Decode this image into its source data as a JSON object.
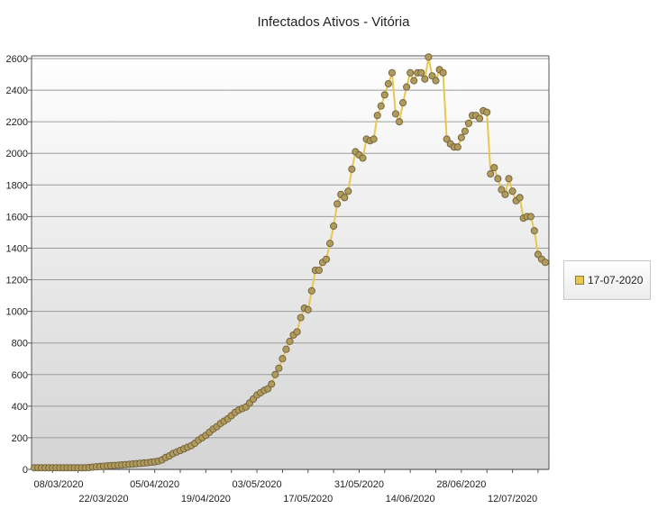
{
  "chart_data": {
    "type": "line",
    "title": "Infectados Ativos - Vitória",
    "xlabel": "",
    "ylabel": "",
    "ylim": [
      0,
      2600
    ],
    "yticks": [
      0,
      200,
      400,
      600,
      800,
      1000,
      1200,
      1400,
      1600,
      1800,
      2000,
      2200,
      2400,
      2600
    ],
    "xtick_labels": [
      "08/03/2020",
      "22/03/2020",
      "05/04/2020",
      "19/04/2020",
      "03/05/2020",
      "17/05/2020",
      "31/05/2020",
      "14/06/2020",
      "28/06/2020",
      "12/07/2020"
    ],
    "x_start": "03/03/2020",
    "x_end": "17/07/2020",
    "grid": true,
    "legend_position": "right",
    "series": [
      {
        "name": "17-07-2020",
        "color": "#e8c650",
        "marker_color": "#b09a5c",
        "values": [
          10,
          10,
          10,
          10,
          10,
          10,
          10,
          10,
          10,
          10,
          10,
          10,
          10,
          10,
          10,
          12,
          14,
          16,
          18,
          20,
          22,
          24,
          25,
          26,
          28,
          30,
          32,
          34,
          36,
          38,
          40,
          42,
          45,
          48,
          52,
          60,
          75,
          85,
          100,
          110,
          120,
          130,
          140,
          150,
          165,
          185,
          200,
          215,
          235,
          255,
          270,
          290,
          305,
          320,
          340,
          360,
          375,
          385,
          395,
          420,
          445,
          470,
          485,
          500,
          510,
          540,
          600,
          640,
          700,
          760,
          810,
          850,
          870,
          960,
          1020,
          1010,
          1130,
          1260,
          1260,
          1310,
          1330,
          1430,
          1540,
          1680,
          1740,
          1720,
          1760,
          1900,
          2010,
          1990,
          1970,
          2090,
          2080,
          2090,
          2240,
          2300,
          2370,
          2440,
          2510,
          2250,
          2200,
          2320,
          2420,
          2510,
          2460,
          2510,
          2510,
          2470,
          2610,
          2490,
          2460,
          2530,
          2510,
          2090,
          2060,
          2040,
          2040,
          2100,
          2140,
          2190,
          2240,
          2240,
          2220,
          2270,
          2260,
          1870,
          1910,
          1840,
          1770,
          1740,
          1840,
          1760,
          1700,
          1720,
          1590,
          1600,
          1600,
          1510,
          1360,
          1330,
          1310
        ]
      }
    ]
  }
}
